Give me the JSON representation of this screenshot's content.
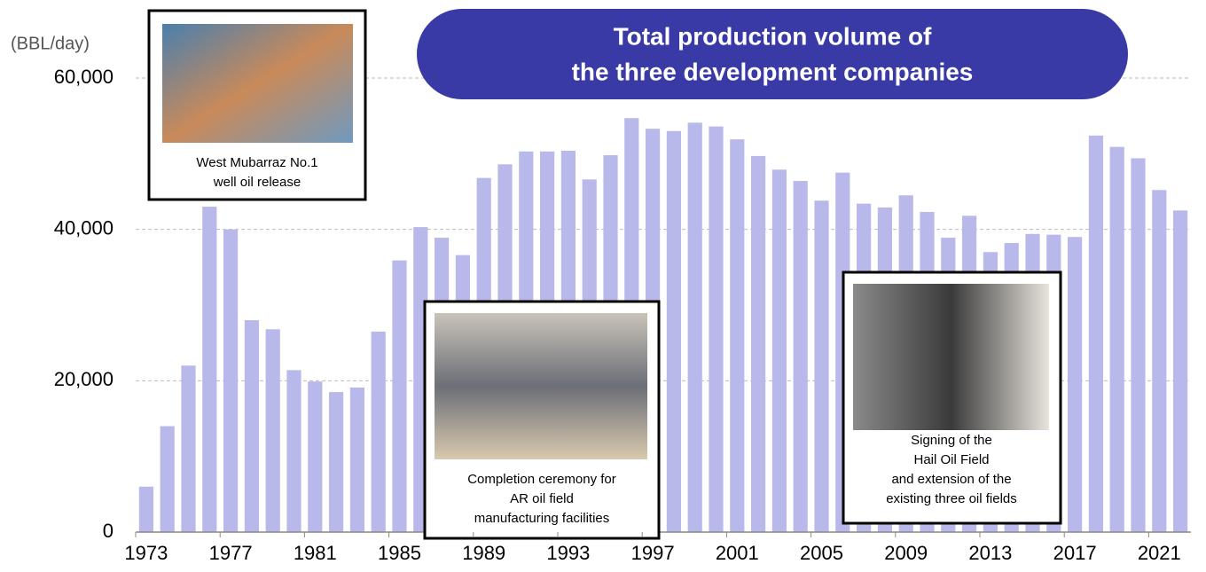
{
  "chart_data": {
    "type": "bar",
    "title": [
      "Total production volume of",
      "the three development companies"
    ],
    "y_unit": "(BBL/day)",
    "categories": [
      1973,
      null,
      null,
      null,
      1977,
      null,
      null,
      null,
      1981,
      null,
      null,
      null,
      1985,
      null,
      null,
      null,
      1989,
      null,
      null,
      null,
      1993,
      null,
      null,
      null,
      1997,
      null,
      null,
      null,
      2001,
      null,
      null,
      null,
      2005,
      null,
      null,
      null,
      2009,
      null,
      null,
      null,
      2013,
      null,
      null,
      null,
      2017,
      null,
      null,
      null,
      2021,
      null
    ],
    "values": [
      6000,
      14000,
      22000,
      43000,
      40000,
      28000,
      26800,
      21400,
      19900,
      18500,
      19100,
      26500,
      35900,
      40300,
      38900,
      36600,
      46800,
      48600,
      50300,
      50300,
      50400,
      46600,
      49800,
      54700,
      53300,
      53000,
      54100,
      53600,
      51900,
      49700,
      47900,
      46400,
      43800,
      47500,
      43400,
      42900,
      44500,
      42300,
      38900,
      41800,
      37000,
      38200,
      39400,
      39300,
      39000,
      52400,
      50900,
      49400,
      45200,
      42500
    ],
    "color": "#b8b8ea",
    "ylim": [
      0,
      60000
    ],
    "yticks": [
      0,
      {
        "value": 20000,
        "label": "20,000"
      },
      {
        "value": 40000,
        "label": "40,000"
      },
      {
        "value": 60000,
        "label": "60,000"
      }
    ],
    "grid": true,
    "annotations": [
      {
        "lines": [
          "West Mubarraz No.1",
          "well oil release"
        ]
      },
      {
        "lines": [
          "Completion ceremony for",
          "AR oil field",
          "manufacturing facilities"
        ]
      },
      {
        "lines": [
          "Signing of the",
          "Hail Oil Field",
          "and extension of the",
          "existing three oil fields"
        ]
      }
    ]
  }
}
